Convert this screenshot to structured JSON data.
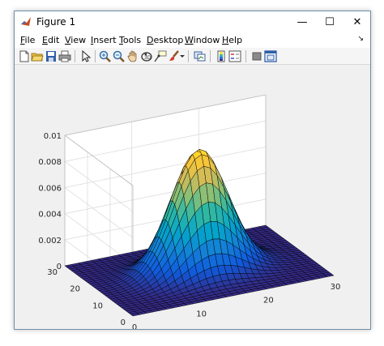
{
  "window": {
    "title": "Figure 1",
    "minimize_glyph": "—",
    "maximize_glyph": "☐",
    "close_glyph": "✕"
  },
  "menu": {
    "items": [
      {
        "prefix": "",
        "u": "F",
        "rest": "ile"
      },
      {
        "prefix": "",
        "u": "E",
        "rest": "dit"
      },
      {
        "prefix": "",
        "u": "V",
        "rest": "iew"
      },
      {
        "prefix": "",
        "u": "I",
        "rest": "nsert"
      },
      {
        "prefix": "",
        "u": "T",
        "rest": "ools"
      },
      {
        "prefix": "",
        "u": "D",
        "rest": "esktop"
      },
      {
        "prefix": "",
        "u": "W",
        "rest": "indow"
      },
      {
        "prefix": "",
        "u": "H",
        "rest": "elp"
      }
    ],
    "overflow_glyph": "↘"
  },
  "toolbar": {
    "icons": [
      "new-figure-icon",
      "open-file-icon",
      "save-icon",
      "print-icon",
      "edit-plot-icon",
      "zoom-in-icon",
      "zoom-out-icon",
      "pan-icon",
      "rotate-3d-icon",
      "data-cursor-icon",
      "brush-icon",
      "brush-dropdown-icon",
      "link-plot-icon",
      "colorbar-icon",
      "legend-icon",
      "hide-plot-tools-icon",
      "show-plot-tools-icon"
    ]
  },
  "chart_data": {
    "type": "surface",
    "title": "",
    "xlabel": "",
    "ylabel": "",
    "zlabel": "",
    "xlim": [
      0,
      30
    ],
    "ylim": [
      0,
      30
    ],
    "zlim": [
      0,
      0.01
    ],
    "x_ticks": [
      "0",
      "10",
      "20",
      "30"
    ],
    "y_ticks": [
      "0",
      "10",
      "20",
      "30"
    ],
    "z_ticks": [
      "0",
      "0.002",
      "0.004",
      "0.006",
      "0.008",
      "0.01"
    ],
    "grid": true,
    "colormap": "parula",
    "function": "gaussian",
    "grid_size": 30,
    "peak": 0.0093,
    "center": [
      15,
      15
    ],
    "sigma": 4.1,
    "colors": [
      "#352a87",
      "#0f5cdd",
      "#1481d6",
      "#06a4ca",
      "#2eb7a4",
      "#87bf77",
      "#d1bb59",
      "#fec832",
      "#f9fb0e"
    ]
  }
}
